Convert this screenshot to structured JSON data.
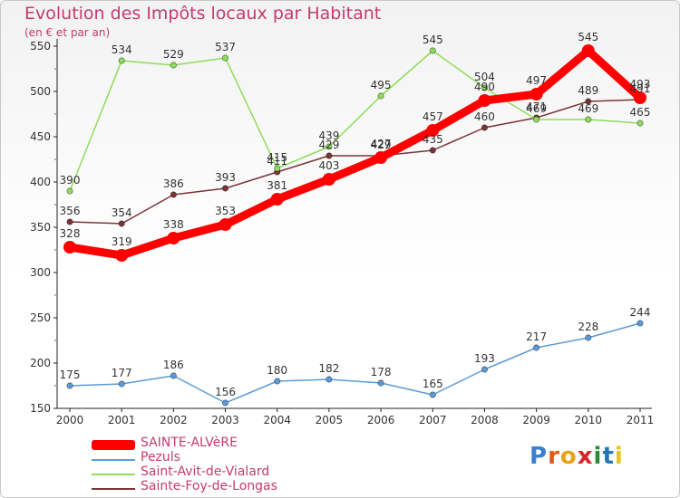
{
  "header": {
    "title": "Evolution des Impôts locaux par Habitant",
    "subtitle": "(en € et par an)"
  },
  "brand": {
    "letters": [
      "P",
      "r",
      "o",
      "x",
      "i",
      "t",
      "i"
    ],
    "colors": [
      "#3a7fd0",
      "#e05a1b",
      "#e8a21a",
      "#d72424",
      "#2a8a3a",
      "#1f77b4",
      "#e6c51a"
    ]
  },
  "chart_data": {
    "type": "line",
    "title": "Evolution des Impôts locaux par Habitant",
    "subtitle": "(en € et par an)",
    "xlabel": "",
    "ylabel": "",
    "x": [
      "2000",
      "2001",
      "2002",
      "2003",
      "2004",
      "2005",
      "2006",
      "2007",
      "2008",
      "2009",
      "2010",
      "2011"
    ],
    "ylim": [
      150,
      550
    ],
    "yticks": [
      150,
      200,
      250,
      300,
      350,
      400,
      450,
      500,
      550
    ],
    "grid": false,
    "legend_position": "bottom-left",
    "series": [
      {
        "name": "SAINTE-ALVèRE",
        "color": "#ff0000",
        "values": [
          328,
          319,
          338,
          353,
          381,
          403,
          427,
          457,
          490,
          497,
          545,
          493
        ]
      },
      {
        "name": "Pezuls",
        "color": "#5b9bd5",
        "values": [
          175,
          177,
          186,
          156,
          180,
          182,
          178,
          165,
          193,
          217,
          228,
          244
        ]
      },
      {
        "name": "Saint-Avit-de-Vialard",
        "color": "#8fdc5a",
        "values": [
          390,
          534,
          529,
          537,
          415,
          439,
          495,
          545,
          504,
          469,
          469,
          465
        ]
      },
      {
        "name": "Sainte-Foy-de-Longas",
        "color": "#7a3535",
        "values": [
          356,
          354,
          386,
          393,
          411,
          429,
          429,
          435,
          460,
          471,
          489,
          491
        ]
      }
    ]
  }
}
